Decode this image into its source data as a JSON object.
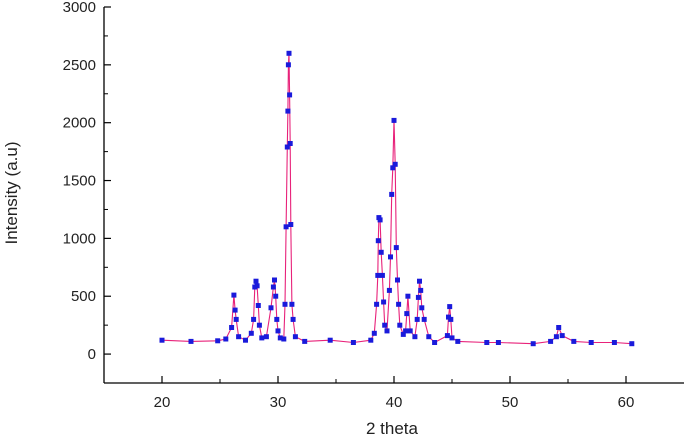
{
  "chart_data": {
    "type": "line",
    "title": "",
    "xlabel": "2 theta",
    "ylabel": "Intensity (a.u)",
    "xlim": [
      15,
      65
    ],
    "ylim": [
      -250,
      3000
    ],
    "xticks": [
      20,
      30,
      40,
      50,
      60
    ],
    "yticks": [
      0,
      500,
      1000,
      1500,
      2000,
      2500,
      3000
    ],
    "grid": false,
    "legend": "none",
    "colors": {
      "line": "#e8227a",
      "marker": "#1a1adb",
      "axis": "#000000"
    },
    "series": [
      {
        "x": [
          20.0,
          22.5,
          24.8,
          25.5,
          26.0,
          26.2,
          26.3,
          26.4,
          26.6,
          27.2,
          27.7,
          27.9,
          28.0,
          28.1,
          28.2,
          28.3,
          28.4,
          28.6,
          29.0,
          29.4,
          29.6,
          29.7,
          29.8,
          29.9,
          30.0,
          30.2,
          30.5,
          30.6,
          30.7,
          30.8,
          30.85,
          30.9,
          30.95,
          31.0,
          31.05,
          31.1,
          31.2,
          31.3,
          31.5,
          32.3,
          34.5,
          36.5,
          38.0,
          38.3,
          38.5,
          38.6,
          38.65,
          38.7,
          38.8,
          38.9,
          39.0,
          39.1,
          39.2,
          39.4,
          39.6,
          39.7,
          39.8,
          39.9,
          40.0,
          40.1,
          40.2,
          40.3,
          40.4,
          40.5,
          40.8,
          41.0,
          41.1,
          41.2,
          41.4,
          41.8,
          42.0,
          42.1,
          42.2,
          42.3,
          42.4,
          42.6,
          43.0,
          43.5,
          44.6,
          44.7,
          44.8,
          44.9,
          45.0,
          45.5,
          48.0,
          49.0,
          52.0,
          53.5,
          54.0,
          54.2,
          54.5,
          55.5,
          57.0,
          59.0,
          60.5
        ],
        "y": [
          120,
          110,
          115,
          130,
          230,
          510,
          380,
          300,
          150,
          120,
          180,
          300,
          580,
          630,
          590,
          420,
          250,
          140,
          150,
          400,
          580,
          640,
          500,
          300,
          200,
          140,
          130,
          430,
          1100,
          1790,
          2100,
          2500,
          2600,
          2240,
          1820,
          1120,
          430,
          300,
          150,
          110,
          120,
          100,
          120,
          180,
          430,
          680,
          980,
          1180,
          1160,
          880,
          680,
          450,
          250,
          200,
          550,
          840,
          1380,
          1610,
          2020,
          1640,
          920,
          640,
          430,
          250,
          170,
          200,
          350,
          500,
          200,
          150,
          300,
          490,
          630,
          550,
          400,
          300,
          150,
          100,
          160,
          320,
          410,
          300,
          140,
          110,
          100,
          100,
          90,
          110,
          150,
          230,
          160,
          110,
          100,
          100,
          90
        ]
      }
    ]
  }
}
